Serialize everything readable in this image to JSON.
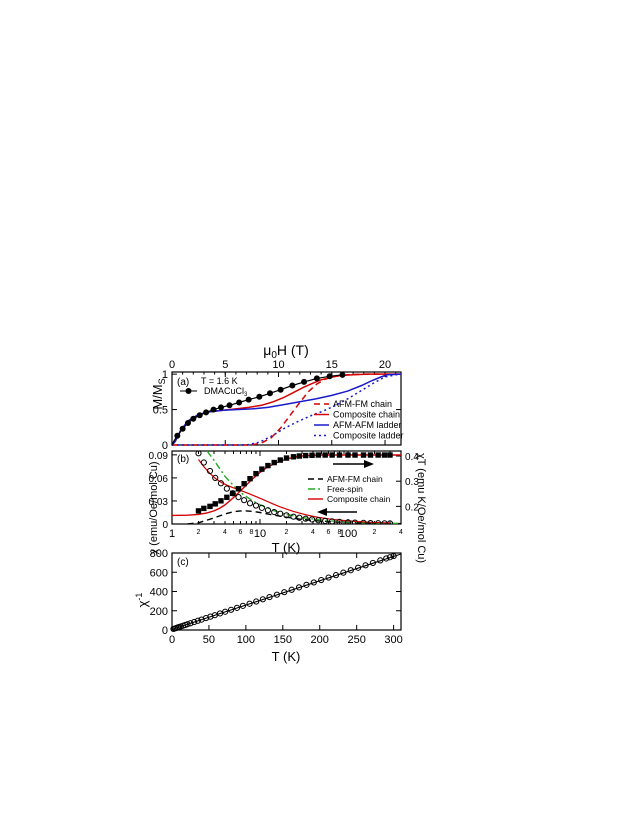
{
  "colors": {
    "black": "#000000",
    "red": "#d40000",
    "blue": "#1a1acc",
    "green": "#22aa22"
  },
  "chart_data": [
    {
      "panel": "(a)",
      "type": "line",
      "xlabel_top": "μ0H (T)",
      "ylabel": "M/MS",
      "xlim": [
        0,
        21.5
      ],
      "ylim": [
        0,
        1.03
      ],
      "xticks": [
        "0",
        "5",
        "10",
        "15",
        "20"
      ],
      "yticks": [
        "0",
        "0.5",
        "1"
      ],
      "annotation": "T = 1.6 K",
      "data_label": "DMACuCl3",
      "measured": {
        "x": [
          0.5,
          1.0,
          1.5,
          2.0,
          2.6,
          3.2,
          3.9,
          4.6,
          5.4,
          6.3,
          7.2,
          8.2,
          9.2,
          10.2,
          11.3,
          12.4,
          13.6,
          14.8,
          16.0
        ],
        "y": [
          0.13,
          0.23,
          0.31,
          0.37,
          0.42,
          0.46,
          0.5,
          0.53,
          0.56,
          0.6,
          0.64,
          0.68,
          0.73,
          0.78,
          0.84,
          0.89,
          0.94,
          0.97,
          0.99
        ]
      },
      "series": [
        {
          "name": "AFM-FM chain",
          "style": "dashed",
          "color": "red",
          "x": [
            0,
            7.2,
            8.3,
            9.3,
            10.2,
            11.1,
            12.0,
            12.8,
            13.6,
            14.4,
            15.3,
            16.5,
            18.0,
            21.5
          ],
          "y": [
            0.0,
            0.0,
            0.02,
            0.1,
            0.24,
            0.42,
            0.6,
            0.75,
            0.86,
            0.93,
            0.97,
            0.99,
            1.0,
            1.0
          ]
        },
        {
          "name": "Composite chain",
          "style": "solid",
          "color": "red",
          "x": [
            0,
            0.3,
            0.8,
            1.5,
            2.5,
            3.6,
            4.8,
            6.0,
            7.2,
            8.4,
            9.5,
            10.5,
            11.4,
            12.3,
            13.2,
            14.0,
            14.8,
            15.8,
            17.0,
            18.5,
            21.5
          ],
          "y": [
            0.0,
            0.05,
            0.2,
            0.34,
            0.43,
            0.47,
            0.49,
            0.51,
            0.53,
            0.56,
            0.61,
            0.67,
            0.74,
            0.81,
            0.87,
            0.92,
            0.95,
            0.98,
            0.99,
            1.0,
            1.0
          ]
        },
        {
          "name": "AFM-AFM ladder",
          "style": "solid",
          "color": "blue",
          "x": [
            0,
            0.3,
            0.8,
            1.5,
            2.5,
            3.6,
            4.8,
            6.0,
            7.5,
            9.0,
            10.5,
            12.0,
            13.5,
            15.0,
            16.5,
            17.8,
            18.8,
            19.6,
            20.2,
            21.5
          ],
          "y": [
            0.0,
            0.05,
            0.2,
            0.34,
            0.43,
            0.47,
            0.49,
            0.5,
            0.51,
            0.53,
            0.57,
            0.61,
            0.65,
            0.7,
            0.76,
            0.84,
            0.91,
            0.96,
            0.99,
            1.0
          ]
        },
        {
          "name": "Composite ladder",
          "style": "dotted",
          "color": "blue",
          "x": [
            0,
            7.0,
            8.2,
            9.4,
            10.6,
            11.8,
            13.0,
            14.2,
            15.4,
            16.6,
            17.8,
            19.0,
            20.0,
            21.0,
            21.5
          ],
          "y": [
            0.0,
            0.0,
            0.04,
            0.13,
            0.24,
            0.33,
            0.41,
            0.48,
            0.56,
            0.66,
            0.77,
            0.88,
            0.96,
            0.99,
            1.0
          ]
        }
      ],
      "legend": [
        "AFM-FM chain",
        "Composite chain",
        "AFM-AFM ladder",
        "Composite ladder"
      ]
    },
    {
      "panel": "(b)",
      "type": "scatter",
      "xscale": "log",
      "xlabel": "T (K)",
      "ylabel_left": "χ (emu/Oe/mol Cu)",
      "ylabel_right": "χT (emu K/Oe/mol Cu)",
      "xlim": [
        1,
        400
      ],
      "ylim_left": [
        0,
        0.095
      ],
      "ylim_right": [
        0.13,
        0.42
      ],
      "xticks_major": [
        "1",
        "10",
        "100"
      ],
      "xticks_minor": [
        "2",
        "4",
        "6",
        "8",
        "2",
        "4",
        "6",
        "8",
        "2",
        "4"
      ],
      "yticks_left": [
        "0",
        "0.03",
        "0.06",
        "0.09"
      ],
      "yticks_right": [
        "0.2",
        "0.3",
        "0.4"
      ],
      "chi_measured": {
        "x": [
          2.0,
          2.3,
          2.7,
          3.1,
          3.6,
          4.2,
          4.9,
          5.7,
          6.6,
          7.7,
          9.0,
          10.5,
          12.3,
          14.5,
          17.0,
          20,
          24,
          28,
          33,
          39,
          46,
          55,
          66,
          80,
          100,
          120,
          150,
          180,
          220,
          260,
          300
        ],
        "y": [
          0.092,
          0.08,
          0.069,
          0.06,
          0.053,
          0.046,
          0.04,
          0.035,
          0.031,
          0.027,
          0.024,
          0.021,
          0.018,
          0.0155,
          0.0133,
          0.0113,
          0.0095,
          0.0081,
          0.0069,
          0.0059,
          0.0049,
          0.0041,
          0.0034,
          0.0028,
          0.0022,
          0.0019,
          0.0015,
          0.0012,
          0.001,
          0.0009,
          0.0008
        ]
      },
      "chiT_measured": {
        "x": [
          2.0,
          2.3,
          2.7,
          3.1,
          3.6,
          4.2,
          4.9,
          5.7,
          6.6,
          7.7,
          9.0,
          10.5,
          12.3,
          14.5,
          17.0,
          20,
          24,
          28,
          33,
          39,
          46,
          55,
          66,
          80,
          100,
          120,
          150,
          180,
          220,
          260,
          300
        ],
        "y": [
          0.182,
          0.192,
          0.2,
          0.21,
          0.222,
          0.236,
          0.252,
          0.27,
          0.29,
          0.31,
          0.33,
          0.348,
          0.362,
          0.374,
          0.384,
          0.392,
          0.397,
          0.4,
          0.402,
          0.403,
          0.404,
          0.404,
          0.404,
          0.404,
          0.404,
          0.404,
          0.404,
          0.404,
          0.404,
          0.404,
          0.404
        ]
      },
      "series": [
        {
          "name": "AFM-FM chain",
          "style": "dashed",
          "color": "black",
          "x": [
            1.5,
            2.0,
            3.0,
            4.0,
            5.0,
            6.0,
            7.0,
            8.5,
            10,
            13,
            17,
            22,
            30,
            40,
            60,
            90,
            140,
            220,
            300,
            400
          ],
          "y": [
            0.0,
            0.0015,
            0.008,
            0.013,
            0.016,
            0.017,
            0.017,
            0.0163,
            0.015,
            0.0125,
            0.0102,
            0.0082,
            0.006,
            0.0046,
            0.0032,
            0.0021,
            0.0014,
            0.0009,
            0.0007,
            0.0005
          ]
        },
        {
          "name": "Free-spin",
          "style": "dash-dot",
          "color": "green",
          "x": [
            2.5,
            3,
            4,
            5,
            6,
            8,
            10,
            15,
            20,
            30,
            50,
            100,
            200,
            400
          ],
          "y": [
            0.095,
            0.083,
            0.062,
            0.05,
            0.041,
            0.031,
            0.025,
            0.0166,
            0.0125,
            0.0083,
            0.005,
            0.0025,
            0.00125,
            0.0006
          ]
        },
        {
          "name": "Composite chain",
          "style": "solid",
          "color": "red",
          "x": [
            1.0,
            1.5,
            2.0,
            2.5,
            3.0,
            3.5,
            4.0,
            5.0,
            6.0,
            7.0,
            8.0,
            10,
            12,
            15,
            20,
            25,
            30,
            40,
            50,
            70,
            100,
            150,
            200,
            300,
            400
          ],
          "y": [
            0.164,
            0.165,
            0.168,
            0.174,
            0.182,
            0.193,
            0.206,
            0.235,
            0.262,
            0.285,
            0.305,
            0.335,
            0.355,
            0.372,
            0.388,
            0.396,
            0.4,
            0.403,
            0.404,
            0.404,
            0.404,
            0.404,
            0.404,
            0.404,
            0.404
          ],
          "axis": "right"
        }
      ],
      "legend": [
        "AFM-FM chain",
        "Free-spin",
        "Composite chain"
      ]
    },
    {
      "panel": "(c)",
      "type": "scatter",
      "xlabel": "T (K)",
      "ylabel": "χ-1",
      "xlim": [
        0,
        310
      ],
      "ylim": [
        0,
        800
      ],
      "xticks": [
        "0",
        "50",
        "100",
        "150",
        "200",
        "250",
        "300"
      ],
      "yticks": [
        "0",
        "200",
        "400",
        "600",
        "800"
      ],
      "measured": {
        "x": [
          2,
          4,
          6,
          8,
          10,
          12,
          15,
          18,
          21,
          25,
          30,
          35,
          40,
          46,
          52,
          58,
          65,
          72,
          80,
          88,
          96,
          105,
          114,
          123,
          132,
          142,
          152,
          162,
          172,
          182,
          192,
          202,
          212,
          222,
          232,
          242,
          252,
          262,
          272,
          282,
          290,
          295,
          300
        ],
        "y": [
          11,
          16,
          21,
          27,
          32,
          37,
          45,
          52,
          60,
          70,
          83,
          96,
          108,
          124,
          139,
          154,
          172,
          190,
          210,
          230,
          251,
          273,
          296,
          319,
          342,
          367,
          393,
          418,
          443,
          469,
          494,
          519,
          545,
          570,
          596,
          621,
          647,
          672,
          697,
          723,
          743,
          756,
          768
        ]
      },
      "fit": {
        "x": [
          0,
          310
        ],
        "y": [
          6,
          790
        ]
      }
    }
  ]
}
